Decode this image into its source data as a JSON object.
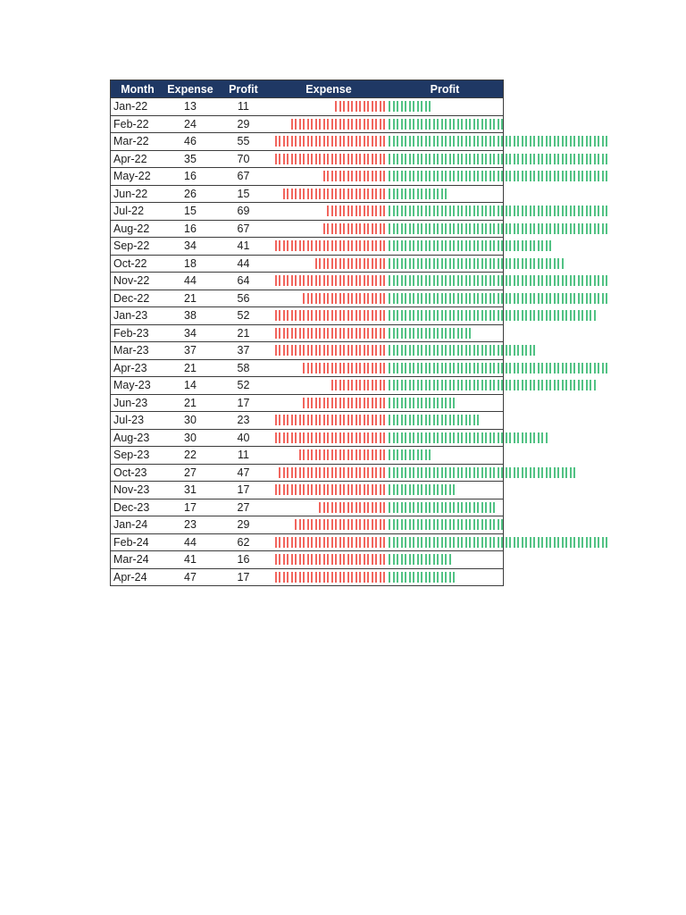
{
  "style": {
    "header_bg": "#1F3864",
    "header_text": "#FFFFFF",
    "text_color": "#1C1C1C",
    "border_color": "#3C3C3C",
    "expense_tick_color": "#F1655D",
    "profit_tick_color": "#52C284"
  },
  "bars": {
    "tick_char": "|",
    "max_expense_ticks": 28,
    "max_profit_ticks": 55
  },
  "table": {
    "headers": [
      {
        "label": "Month"
      },
      {
        "label": "Expense"
      },
      {
        "label": "Profit"
      },
      {
        "label": "Expense"
      },
      {
        "label": "Profit"
      }
    ],
    "rows": [
      {
        "month": "Jan-22",
        "expense": 13,
        "profit": 11
      },
      {
        "month": "Feb-22",
        "expense": 24,
        "profit": 29
      },
      {
        "month": "Mar-22",
        "expense": 46,
        "profit": 55
      },
      {
        "month": "Apr-22",
        "expense": 35,
        "profit": 70
      },
      {
        "month": "May-22",
        "expense": 16,
        "profit": 67
      },
      {
        "month": "Jun-22",
        "expense": 26,
        "profit": 15
      },
      {
        "month": "Jul-22",
        "expense": 15,
        "profit": 69
      },
      {
        "month": "Aug-22",
        "expense": 16,
        "profit": 67
      },
      {
        "month": "Sep-22",
        "expense": 34,
        "profit": 41
      },
      {
        "month": "Oct-22",
        "expense": 18,
        "profit": 44
      },
      {
        "month": "Nov-22",
        "expense": 44,
        "profit": 64
      },
      {
        "month": "Dec-22",
        "expense": 21,
        "profit": 56
      },
      {
        "month": "Jan-23",
        "expense": 38,
        "profit": 52
      },
      {
        "month": "Feb-23",
        "expense": 34,
        "profit": 21
      },
      {
        "month": "Mar-23",
        "expense": 37,
        "profit": 37
      },
      {
        "month": "Apr-23",
        "expense": 21,
        "profit": 58
      },
      {
        "month": "May-23",
        "expense": 14,
        "profit": 52
      },
      {
        "month": "Jun-23",
        "expense": 21,
        "profit": 17
      },
      {
        "month": "Jul-23",
        "expense": 30,
        "profit": 23
      },
      {
        "month": "Aug-23",
        "expense": 30,
        "profit": 40
      },
      {
        "month": "Sep-23",
        "expense": 22,
        "profit": 11
      },
      {
        "month": "Oct-23",
        "expense": 27,
        "profit": 47
      },
      {
        "month": "Nov-23",
        "expense": 31,
        "profit": 17
      },
      {
        "month": "Dec-23",
        "expense": 17,
        "profit": 27
      },
      {
        "month": "Jan-24",
        "expense": 23,
        "profit": 29
      },
      {
        "month": "Feb-24",
        "expense": 44,
        "profit": 62
      },
      {
        "month": "Mar-24",
        "expense": 41,
        "profit": 16
      },
      {
        "month": "Apr-24",
        "expense": 47,
        "profit": 17
      }
    ]
  },
  "chart_data": {
    "type": "bar",
    "title": "",
    "xlabel": "Month",
    "ylabel": "",
    "legend_position": "in-table column headers",
    "grid": false,
    "categories": [
      "Jan-22",
      "Feb-22",
      "Mar-22",
      "Apr-22",
      "May-22",
      "Jun-22",
      "Jul-22",
      "Aug-22",
      "Sep-22",
      "Oct-22",
      "Nov-22",
      "Dec-22",
      "Jan-23",
      "Feb-23",
      "Mar-23",
      "Apr-23",
      "May-23",
      "Jun-23",
      "Jul-23",
      "Aug-23",
      "Sep-23",
      "Oct-23",
      "Nov-23",
      "Dec-23",
      "Jan-24",
      "Feb-24",
      "Mar-24",
      "Apr-24"
    ],
    "series": [
      {
        "name": "Expense",
        "color": "#F1655D",
        "values": [
          13,
          24,
          46,
          35,
          16,
          26,
          15,
          16,
          34,
          18,
          44,
          21,
          38,
          34,
          37,
          21,
          14,
          21,
          30,
          30,
          22,
          27,
          31,
          17,
          23,
          44,
          41,
          47
        ]
      },
      {
        "name": "Profit",
        "color": "#52C284",
        "values": [
          11,
          29,
          55,
          70,
          67,
          15,
          69,
          67,
          41,
          44,
          64,
          56,
          52,
          21,
          37,
          58,
          52,
          17,
          23,
          40,
          11,
          47,
          17,
          27,
          29,
          62,
          16,
          17
        ]
      }
    ],
    "render_style": "in-cell repeated vertical tick bars (REPT-style); Expense bars red, right-aligned, visually clipped at 28 ticks; Profit bars green, left-aligned, overflow past table edge, visually clipped at 55 ticks",
    "value_range": [
      0,
      70
    ]
  }
}
